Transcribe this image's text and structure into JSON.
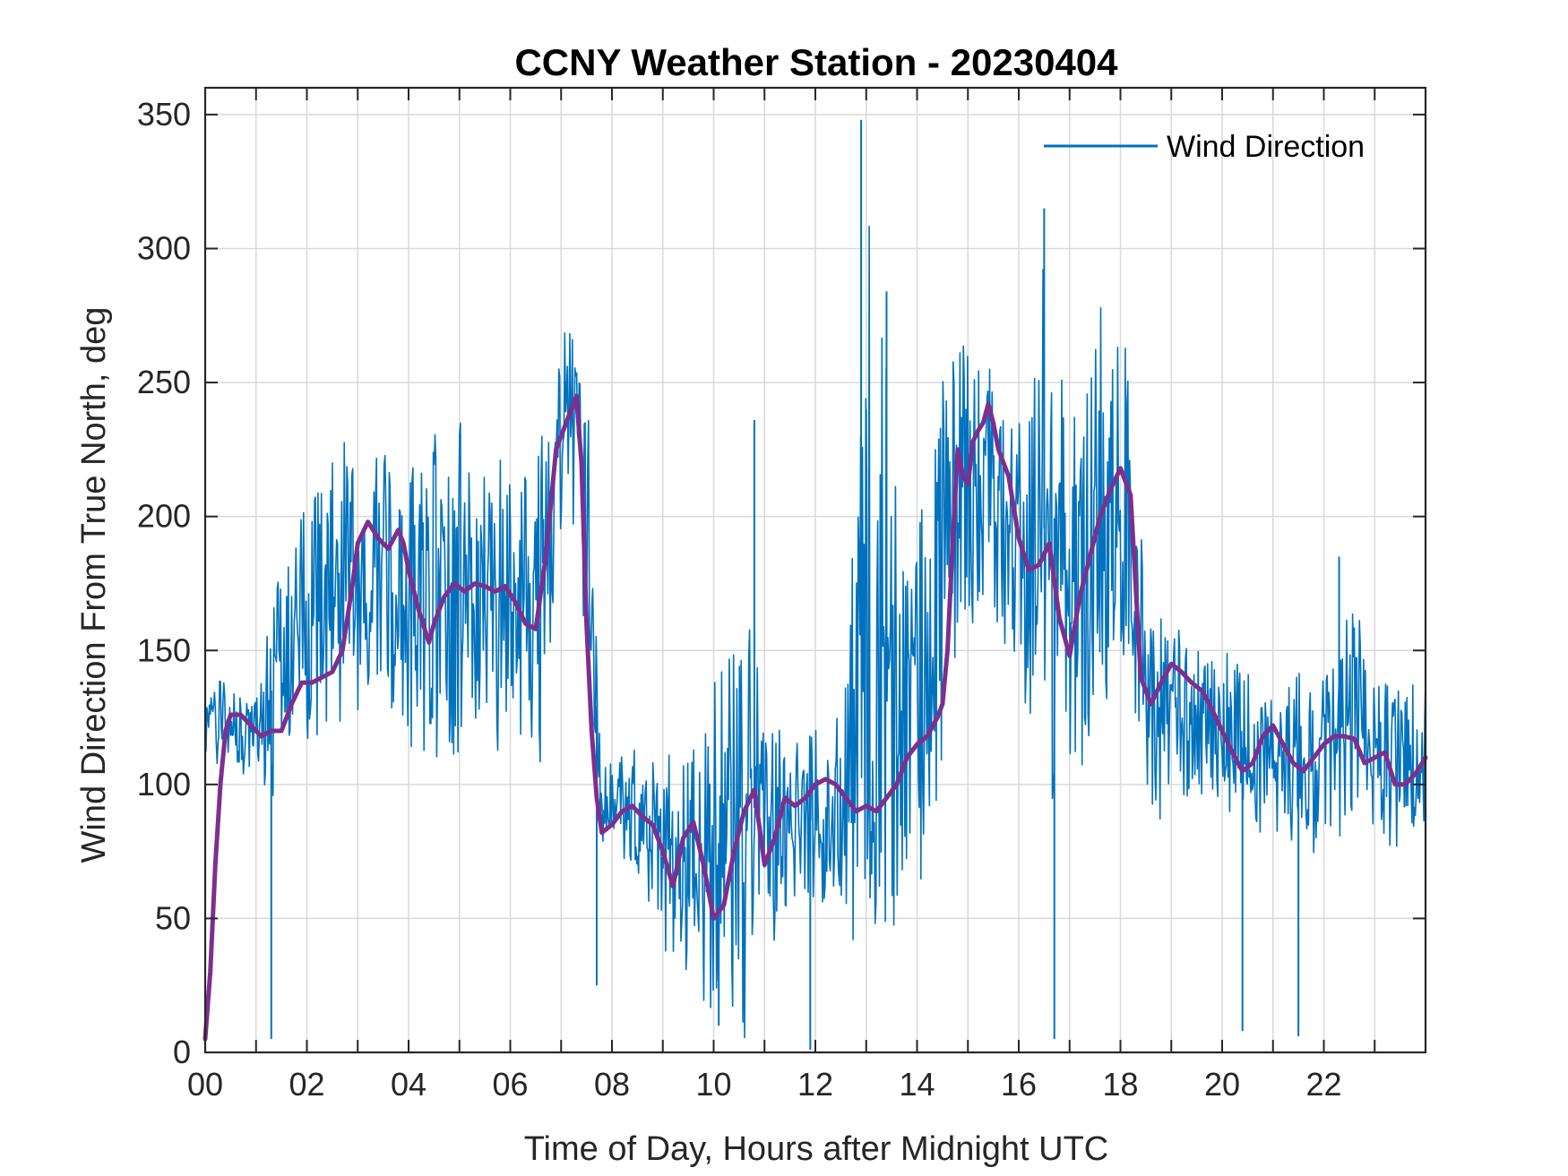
{
  "chart_data": {
    "type": "line",
    "title": "CCNY Weather Station - 20230404",
    "xlabel": "Time of Day, Hours after Midnight UTC",
    "ylabel": "Wind Direction From True North, deg",
    "xlim": [
      0,
      24
    ],
    "ylim": [
      0,
      360
    ],
    "x_ticks": [
      0,
      2,
      4,
      6,
      8,
      10,
      12,
      14,
      16,
      18,
      20,
      22
    ],
    "x_tick_labels": [
      "00",
      "02",
      "04",
      "06",
      "08",
      "10",
      "12",
      "14",
      "16",
      "18",
      "20",
      "22"
    ],
    "y_ticks": [
      0,
      50,
      100,
      150,
      200,
      250,
      300,
      350
    ],
    "y_tick_labels": [
      "0",
      "50",
      "100",
      "150",
      "200",
      "250",
      "300",
      "350"
    ],
    "grid": true,
    "legend_position": "top-right",
    "colors": {
      "raw": "#0072BD",
      "smooth": "#7E2F8E",
      "grid": "#d9d9d9",
      "axis": "#262626"
    },
    "series": [
      {
        "name": "Wind Direction",
        "kind": "raw",
        "envelope": {
          "x": [
            0.0,
            0.3,
            0.6,
            1.0,
            1.4,
            1.8,
            2.2,
            2.6,
            3.0,
            3.4,
            3.8,
            4.2,
            4.6,
            5.0,
            5.4,
            5.8,
            6.2,
            6.6,
            6.9,
            7.2,
            7.5,
            7.8,
            8.2,
            8.6,
            9.0,
            9.4,
            9.8,
            10.2,
            10.6,
            11.0,
            11.4,
            11.8,
            12.2,
            12.6,
            13.0,
            13.4,
            13.8,
            14.2,
            14.6,
            15.0,
            15.4,
            15.8,
            16.2,
            16.6,
            17.0,
            17.4,
            17.8,
            18.2,
            18.6,
            19.0,
            19.4,
            19.8,
            20.2,
            20.6,
            21.0,
            21.4,
            21.8,
            22.2,
            22.6,
            23.0,
            23.4,
            23.8,
            24.0
          ],
          "low": [
            100,
            110,
            105,
            100,
            95,
            110,
            115,
            118,
            120,
            115,
            112,
            110,
            105,
            110,
            112,
            110,
            112,
            100,
            180,
            200,
            150,
            75,
            70,
            65,
            35,
            20,
            5,
            15,
            0,
            30,
            50,
            60,
            55,
            45,
            30,
            40,
            50,
            70,
            120,
            150,
            170,
            140,
            110,
            90,
            100,
            110,
            130,
            140,
            80,
            90,
            95,
            90,
            85,
            80,
            80,
            75,
            70,
            80,
            80,
            80,
            75,
            80,
            85
          ],
          "high": [
            135,
            140,
            140,
            140,
            185,
            200,
            220,
            230,
            235,
            235,
            230,
            230,
            232,
            235,
            232,
            230,
            220,
            235,
            270,
            272,
            255,
            110,
            115,
            115,
            110,
            115,
            125,
            150,
            200,
            135,
            120,
            125,
            125,
            140,
            348,
            265,
            180,
            230,
            290,
            275,
            270,
            250,
            240,
            315,
            280,
            280,
            278,
            260,
            180,
            160,
            160,
            155,
            150,
            140,
            140,
            145,
            140,
            150,
            185,
            140,
            140,
            140,
            148
          ],
          "spikes": [
            {
              "x": 1.3,
              "y": 5
            },
            {
              "x": 7.7,
              "y": 25
            },
            {
              "x": 10.1,
              "y": 10
            },
            {
              "x": 10.8,
              "y": 236
            },
            {
              "x": 11.9,
              "y": 1
            },
            {
              "x": 12.9,
              "y": 348
            },
            {
              "x": 13.0,
              "y": 240
            },
            {
              "x": 13.4,
              "y": 284
            },
            {
              "x": 16.5,
              "y": 315
            },
            {
              "x": 16.7,
              "y": 5
            },
            {
              "x": 20.4,
              "y": 8
            },
            {
              "x": 21.5,
              "y": 6
            },
            {
              "x": 22.3,
              "y": 185
            }
          ]
        }
      },
      {
        "name": "",
        "kind": "smooth",
        "x": [
          0.0,
          0.1,
          0.2,
          0.3,
          0.4,
          0.5,
          0.7,
          0.9,
          1.1,
          1.3,
          1.5,
          1.7,
          1.9,
          2.1,
          2.3,
          2.5,
          2.7,
          2.9,
          3.0,
          3.2,
          3.4,
          3.6,
          3.8,
          3.9,
          4.0,
          4.2,
          4.4,
          4.5,
          4.7,
          4.9,
          5.1,
          5.3,
          5.5,
          5.7,
          5.9,
          6.1,
          6.3,
          6.5,
          6.7,
          6.9,
          7.1,
          7.3,
          7.4,
          7.5,
          7.6,
          7.7,
          7.8,
          8.0,
          8.2,
          8.4,
          8.6,
          8.8,
          9.0,
          9.2,
          9.4,
          9.6,
          9.8,
          10.0,
          10.2,
          10.4,
          10.6,
          10.8,
          11.0,
          11.2,
          11.4,
          11.6,
          11.8,
          12.0,
          12.2,
          12.4,
          12.6,
          12.8,
          13.0,
          13.2,
          13.4,
          13.6,
          13.8,
          14.0,
          14.2,
          14.4,
          14.5,
          14.6,
          14.7,
          14.8,
          14.9,
          15.0,
          15.1,
          15.2,
          15.3,
          15.4,
          15.5,
          15.6,
          15.8,
          16.0,
          16.2,
          16.4,
          16.6,
          16.8,
          17.0,
          17.2,
          17.4,
          17.6,
          17.8,
          18.0,
          18.2,
          18.4,
          18.6,
          18.8,
          19.0,
          19.2,
          19.4,
          19.6,
          19.8,
          20.0,
          20.2,
          20.4,
          20.6,
          20.8,
          21.0,
          21.2,
          21.4,
          21.6,
          21.8,
          22.0,
          22.2,
          22.4,
          22.6,
          22.8,
          23.0,
          23.2,
          23.4,
          23.6,
          23.8,
          24.0
        ],
        "y": [
          5,
          30,
          70,
          100,
          120,
          126,
          126,
          122,
          118,
          120,
          120,
          130,
          138,
          138,
          140,
          142,
          150,
          175,
          190,
          198,
          192,
          188,
          195,
          190,
          180,
          165,
          153,
          160,
          170,
          175,
          172,
          175,
          174,
          172,
          174,
          168,
          160,
          158,
          185,
          225,
          235,
          245,
          220,
          160,
          120,
          95,
          82,
          85,
          90,
          92,
          88,
          85,
          75,
          62,
          80,
          86,
          70,
          50,
          55,
          75,
          90,
          98,
          70,
          80,
          95,
          92,
          95,
          100,
          102,
          100,
          95,
          90,
          92,
          90,
          95,
          100,
          110,
          115,
          118,
          125,
          130,
          150,
          190,
          225,
          215,
          212,
          228,
          232,
          235,
          242,
          235,
          225,
          215,
          192,
          180,
          182,
          190,
          162,
          148,
          170,
          185,
          200,
          210,
          218,
          208,
          140,
          130,
          138,
          145,
          142,
          138,
          135,
          128,
          120,
          112,
          105,
          108,
          118,
          122,
          115,
          108,
          105,
          110,
          115,
          118,
          118,
          117,
          108,
          110,
          112,
          100,
          100,
          104,
          110
        ]
      }
    ]
  }
}
